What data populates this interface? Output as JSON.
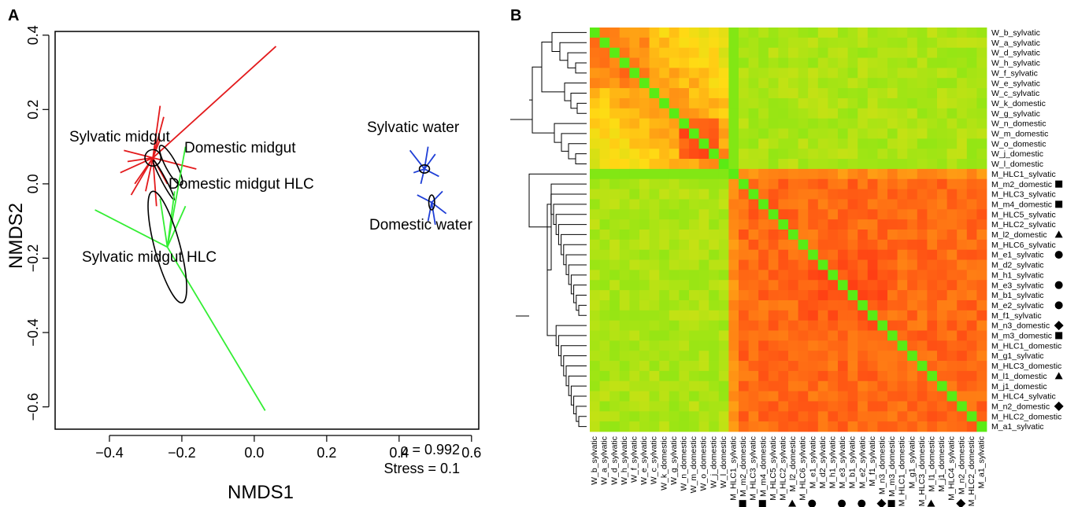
{
  "panel_a": {
    "letter": "A",
    "xlabel": "NMDS1",
    "ylabel": "NMDS2",
    "stat_rho": "ρ = 0.992",
    "stat_stress": "Stress = 0.1",
    "group_labels": [
      "Sylvatic midgut",
      "Domestic midgut",
      "Domestic midgut HLC",
      "Sylvatic midgut HLC",
      "Sylvatic water",
      "Domestic water"
    ]
  },
  "panel_b": {
    "letter": "B"
  },
  "chart_data": [
    {
      "type": "scatter",
      "xlabel": "NMDS1",
      "ylabel": "NMDS2",
      "xlim": [
        -0.55,
        0.62
      ],
      "ylim": [
        -0.66,
        0.41
      ],
      "xticks": [
        -0.4,
        -0.2,
        0.0,
        0.2,
        0.4,
        0.6
      ],
      "xtick_labels": [
        "−0.4",
        "−0.2",
        "0.0",
        "0.2",
        "0.4",
        "0.6"
      ],
      "yticks": [
        -0.6,
        -0.4,
        -0.2,
        0.0,
        0.2,
        0.4
      ],
      "ytick_labels": [
        "−0.6",
        "−0.4",
        "−0.2",
        "0.0",
        "0.2",
        "0.4"
      ],
      "grid": false,
      "colors": {
        "Sylvatic midgut": "#e31a1c",
        "Sylvatic midgut HLC": "#33ee33",
        "Sylvatic water": "#1f3fd6",
        "Domestic midgut": "#000000"
      },
      "series": [
        {
          "name": "Sylvatic midgut",
          "color": "#e31a1c",
          "centroid": [
            -0.28,
            0.07
          ],
          "ellipse": {
            "rx": 0.022,
            "ry": 0.022
          },
          "points": [
            [
              -0.26,
              0.21
            ],
            [
              -0.25,
              0.18
            ],
            [
              -0.36,
              0.09
            ],
            [
              -0.37,
              0.03
            ],
            [
              -0.33,
              0.0
            ],
            [
              -0.24,
              0.0
            ],
            [
              -0.16,
              0.04
            ],
            [
              -0.3,
              -0.02
            ],
            [
              -0.27,
              -0.06
            ],
            [
              -0.35,
              0.06
            ],
            [
              -0.34,
              -0.03
            ],
            [
              0.06,
              0.37
            ],
            [
              -0.26,
              0.12
            ]
          ]
        },
        {
          "name": "Domestic midgut",
          "color": "#000000",
          "centroid": [
            -0.23,
            0.05
          ],
          "ellipse": {
            "rx": 0.015,
            "ry": 0.06,
            "angle": -28
          },
          "points": []
        },
        {
          "name": "Domestic midgut HLC",
          "color": "#000000",
          "centroid": [
            -0.25,
            0.01
          ],
          "ellipse": {
            "rx": 0.006,
            "ry": 0.06,
            "angle": -28
          },
          "points": []
        },
        {
          "name": "Sylvatic midgut HLC",
          "color": "#33ee33",
          "centroid": [
            -0.24,
            -0.17
          ],
          "ellipse": {
            "rx": 0.035,
            "ry": 0.155,
            "angle": -15
          },
          "points": [
            [
              -0.44,
              -0.07
            ],
            [
              -0.19,
              -0.06
            ],
            [
              -0.22,
              -0.02
            ],
            [
              -0.26,
              -0.04
            ],
            [
              -0.19,
              0.1
            ],
            [
              0.03,
              -0.61
            ]
          ]
        },
        {
          "name": "Sylvatic water",
          "color": "#1f3fd6",
          "centroid": [
            0.47,
            0.04
          ],
          "ellipse": {
            "rx": 0.014,
            "ry": 0.011
          },
          "points": [
            [
              0.43,
              0.09
            ],
            [
              0.5,
              0.08
            ],
            [
              0.44,
              0.03
            ],
            [
              0.51,
              0.02
            ],
            [
              0.46,
              0.0
            ],
            [
              0.48,
              0.1
            ]
          ]
        },
        {
          "name": "Domestic water",
          "color": "#1f3fd6",
          "centroid": [
            0.49,
            -0.05
          ],
          "ellipse": {
            "rx": 0.008,
            "ry": 0.02
          },
          "points": [
            [
              0.45,
              -0.03
            ],
            [
              0.52,
              -0.02
            ],
            [
              0.48,
              -0.1
            ],
            [
              0.5,
              -0.11
            ],
            [
              0.53,
              -0.08
            ]
          ]
        }
      ]
    },
    {
      "type": "heatmap",
      "title": "",
      "row_labels": [
        "W_b_sylvatic",
        "W_a_sylvatic",
        "W_d_sylvatic",
        "W_h_sylvatic",
        "W_f_sylvatic",
        "W_e_sylvatic",
        "W_c_sylvatic",
        "W_k_domestic",
        "W_g_sylvatic",
        "W_n_domestic",
        "W_m_domestic",
        "W_o_domestic",
        "W_j_domestic",
        "W_l_domestic",
        "M_HLC1_sylvatic",
        "M_m2_domestic",
        "M_HLC3_sylvatic",
        "M_m4_domestic",
        "M_HLC5_sylvatic",
        "M_HLC2_sylvatic",
        "M_l2_domestic",
        "M_HLC6_sylvatic",
        "M_e1_sylvatic",
        "M_d2_sylvatic",
        "M_h1_sylvatic",
        "M_e3_sylvatic",
        "M_b1_sylvatic",
        "M_e2_sylvatic",
        "M_f1_sylvatic",
        "M_n3_domestic",
        "M_m3_domestic",
        "M_HLC1_domestic",
        "M_g1_sylvatic",
        "M_HLC3_domestic",
        "M_l1_domestic",
        "M_j1_domestic",
        "M_HLC4_sylvatic",
        "M_n2_domestic",
        "M_HLC2_domestic",
        "M_a1_sylvatic"
      ],
      "row_markers": [
        "",
        "",
        "",
        "",
        "",
        "",
        "",
        "",
        "",
        "",
        "",
        "",
        "",
        "",
        "",
        "square",
        "",
        "square",
        "",
        "",
        "triangle",
        "",
        "circle",
        "",
        "",
        "circle",
        "",
        "circle",
        "",
        "diamond",
        "square",
        "",
        "",
        "",
        "triangle",
        "",
        "",
        "diamond",
        "",
        ""
      ],
      "col_labels": [
        "W_b_sylvatic",
        "W_a_sylvatic",
        "W_d_sylvatic",
        "W_h_sylvatic",
        "W_f_sylvatic",
        "W_e_sylvatic",
        "W_c_sylvatic",
        "W_k_domestic",
        "W_g_sylvatic",
        "W_n_domestic",
        "W_m_domestic",
        "W_o_domestic",
        "W_j_domestic",
        "W_l_domestic",
        "M_HLC1_sylvatic",
        "M_m2_domestic",
        "M_HLC3_sylvatic",
        "M_m4_domestic",
        "M_HLC5_sylvatic",
        "M_HLC2_sylvatic",
        "M_l2_domestic",
        "M_HLC6_sylvatic",
        "M_e1_sylvatic",
        "M_d2_sylvatic",
        "M_h1_sylvatic",
        "M_e3_sylvatic",
        "M_b1_sylvatic",
        "M_e2_sylvatic",
        "M_f1_sylvatic",
        "M_n3_domestic",
        "M_m3_domestic",
        "M_HLC1_domestic",
        "M_g1_sylvatic",
        "M_HLC3_domestic",
        "M_l1_domestic",
        "M_j1_domestic",
        "M_HLC4_sylvatic",
        "M_n2_domestic",
        "M_HLC2_domestic",
        "M_a1_sylvatic"
      ],
      "col_markers": [
        "",
        "",
        "",
        "",
        "",
        "",
        "",
        "",
        "",
        "",
        "",
        "",
        "",
        "",
        "",
        "square",
        "",
        "square",
        "",
        "",
        "triangle",
        "",
        "circle",
        "",
        "",
        "circle",
        "",
        "circle",
        "",
        "diamond",
        "square",
        "",
        "",
        "",
        "triangle",
        "",
        "",
        "diamond",
        "",
        ""
      ],
      "blocks": {
        "water": 14,
        "midgut": 26
      },
      "colors": {
        "high": "#ff2200",
        "mid": "#ffd400",
        "low": "#55ee33",
        "diagonal": "#3a3a3a"
      }
    }
  ]
}
